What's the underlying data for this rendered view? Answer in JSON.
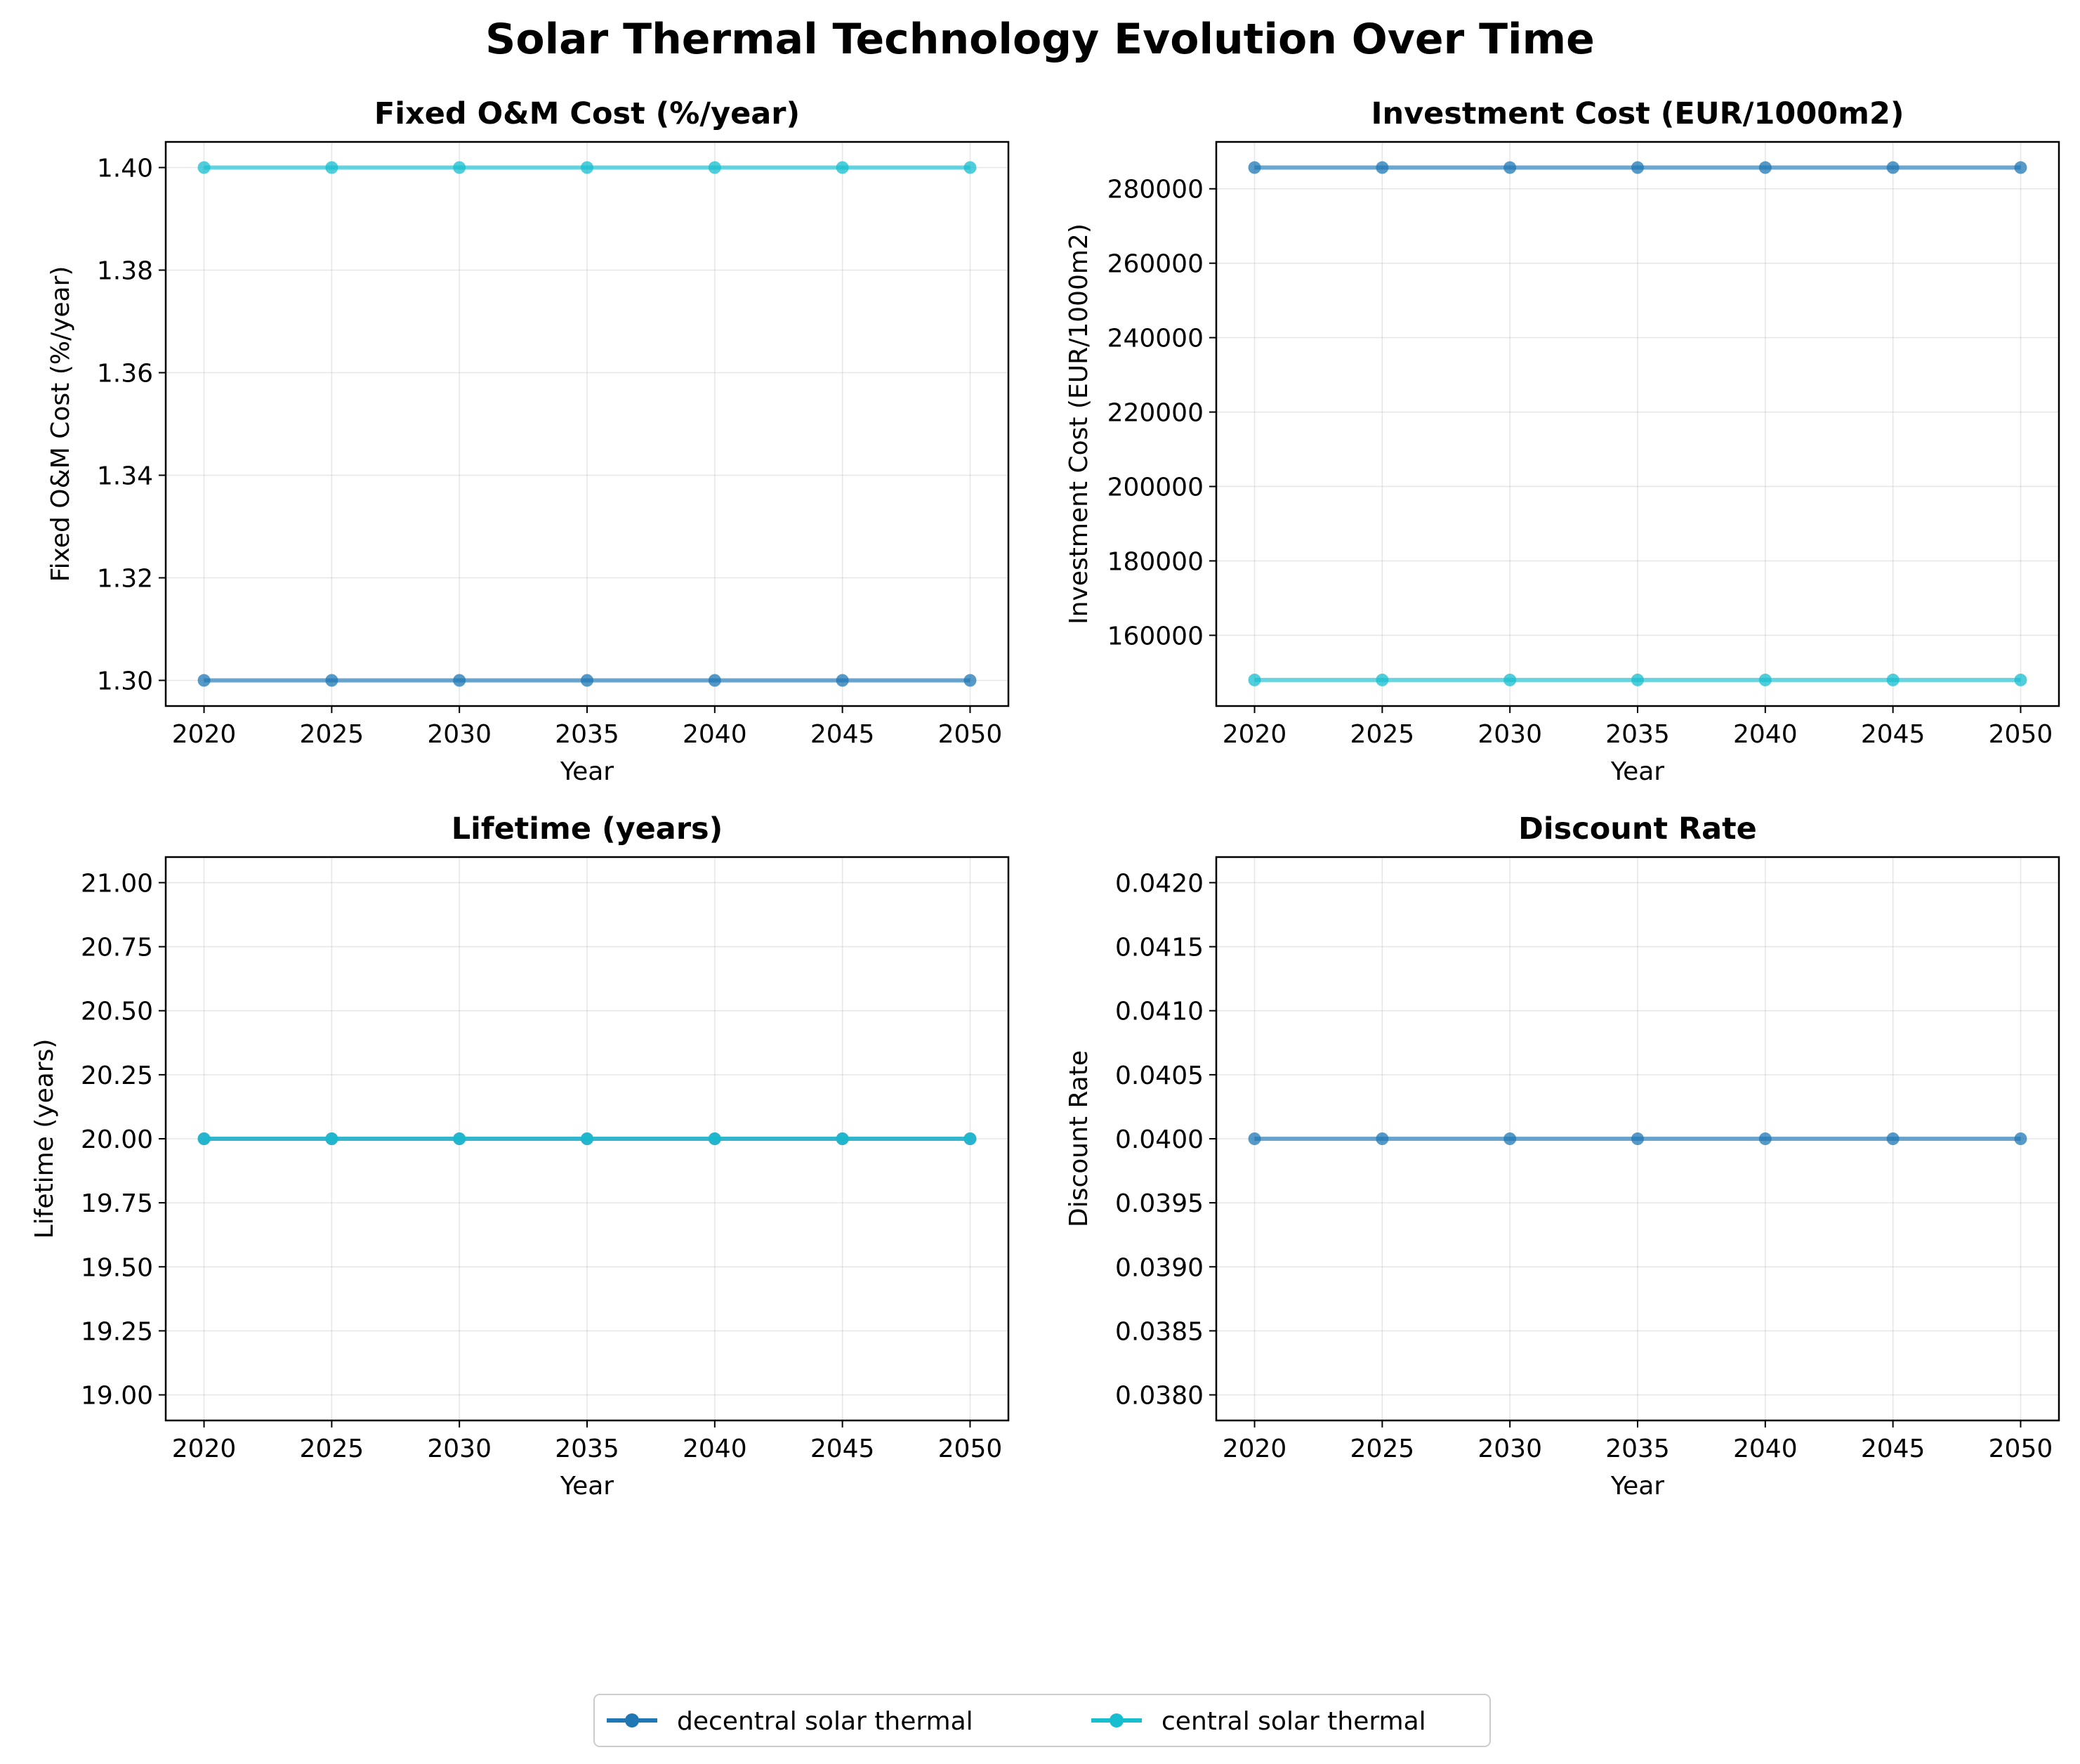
{
  "figure": {
    "suptitle": "Solar Thermal Technology Evolution Over Time"
  },
  "chart_data": [
    {
      "type": "line",
      "title": "Fixed O&M Cost (%/year)",
      "xlabel": "Year",
      "ylabel": "Fixed O&M Cost (%/year)",
      "x": [
        2020,
        2025,
        2030,
        2035,
        2040,
        2045,
        2050
      ],
      "xlim": [
        2018.5,
        2051.5
      ],
      "ylim": [
        1.295,
        1.405
      ],
      "yticks": [
        1.3,
        1.32,
        1.34,
        1.36,
        1.38,
        1.4
      ],
      "ytick_labels": [
        "1.30",
        "1.32",
        "1.34",
        "1.36",
        "1.38",
        "1.40"
      ],
      "grid": true,
      "series": [
        {
          "name": "decentral solar thermal",
          "color": "#1f77b4",
          "values": [
            1.3,
            1.3,
            1.3,
            1.3,
            1.3,
            1.3,
            1.3
          ]
        },
        {
          "name": "central solar thermal",
          "color": "#17becf",
          "values": [
            1.4,
            1.4,
            1.4,
            1.4,
            1.4,
            1.4,
            1.4
          ]
        }
      ]
    },
    {
      "type": "line",
      "title": "Investment Cost (EUR/1000m2)",
      "xlabel": "Year",
      "ylabel": "Investment Cost (EUR/1000m2)",
      "x": [
        2020,
        2025,
        2030,
        2035,
        2040,
        2045,
        2050
      ],
      "xlim": [
        2018.5,
        2051.5
      ],
      "ylim": [
        141000,
        292600
      ],
      "yticks": [
        160000,
        180000,
        200000,
        220000,
        240000,
        260000,
        280000
      ],
      "ytick_labels": [
        "160000",
        "180000",
        "200000",
        "220000",
        "240000",
        "260000",
        "280000"
      ],
      "grid": true,
      "series": [
        {
          "name": "decentral solar thermal",
          "color": "#1f77b4",
          "values": [
            285700,
            285700,
            285700,
            285700,
            285700,
            285700,
            285700
          ]
        },
        {
          "name": "central solar thermal",
          "color": "#17becf",
          "values": [
            148000,
            148000,
            148000,
            148000,
            148000,
            148000,
            148000
          ]
        }
      ]
    },
    {
      "type": "line",
      "title": "Lifetime (years)",
      "xlabel": "Year",
      "ylabel": "Lifetime (years)",
      "x": [
        2020,
        2025,
        2030,
        2035,
        2040,
        2045,
        2050
      ],
      "xlim": [
        2018.5,
        2051.5
      ],
      "ylim": [
        18.9,
        21.1
      ],
      "yticks": [
        19.0,
        19.25,
        19.5,
        19.75,
        20.0,
        20.25,
        20.5,
        20.75,
        21.0
      ],
      "ytick_labels": [
        "19.00",
        "19.25",
        "19.50",
        "19.75",
        "20.00",
        "20.25",
        "20.50",
        "20.75",
        "21.00"
      ],
      "grid": true,
      "series": [
        {
          "name": "decentral solar thermal",
          "color": "#1f77b4",
          "values": [
            20,
            20,
            20,
            20,
            20,
            20,
            20
          ]
        },
        {
          "name": "central solar thermal",
          "color": "#17becf",
          "values": [
            20,
            20,
            20,
            20,
            20,
            20,
            20
          ]
        }
      ]
    },
    {
      "type": "line",
      "title": "Discount Rate",
      "xlabel": "Year",
      "ylabel": "Discount Rate",
      "x": [
        2020,
        2025,
        2030,
        2035,
        2040,
        2045,
        2050
      ],
      "xlim": [
        2018.5,
        2051.5
      ],
      "ylim": [
        0.0378,
        0.0422
      ],
      "yticks": [
        0.038,
        0.0385,
        0.039,
        0.0395,
        0.04,
        0.0405,
        0.041,
        0.0415,
        0.042
      ],
      "ytick_labels": [
        "0.0380",
        "0.0385",
        "0.0390",
        "0.0395",
        "0.0400",
        "0.0405",
        "0.0410",
        "0.0415",
        "0.0420"
      ],
      "grid": true,
      "series": [
        {
          "name": "decentral solar thermal",
          "color": "#1f77b4",
          "values": [
            0.04,
            0.04,
            0.04,
            0.04,
            0.04,
            0.04,
            0.04
          ]
        }
      ]
    }
  ],
  "legend": {
    "placement": "bottom-center",
    "entries": [
      {
        "label": "decentral solar thermal",
        "color": "#1f77b4"
      },
      {
        "label": "central solar thermal",
        "color": "#17becf"
      }
    ]
  }
}
